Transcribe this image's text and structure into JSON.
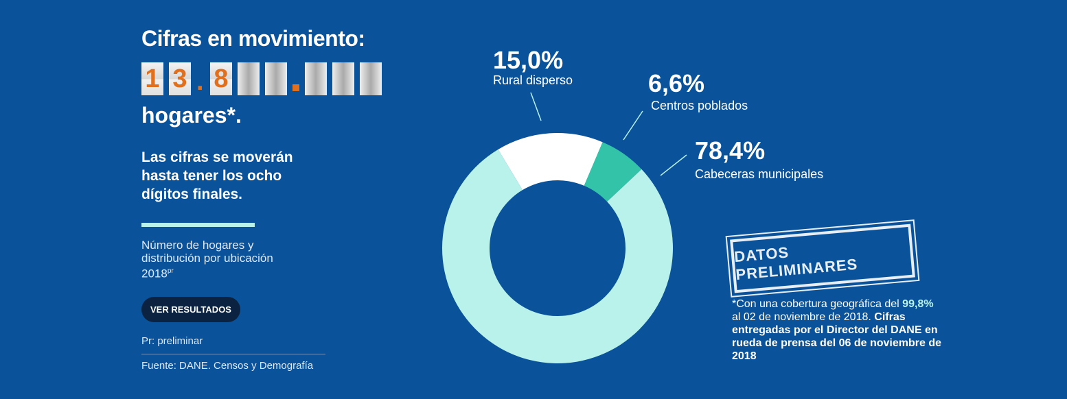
{
  "header": {
    "title": "Cifras en movimiento:",
    "counter": [
      "1",
      "3",
      ".",
      "8"
    ],
    "subtitle": "hogares*."
  },
  "lead": "Las cifras se moverán hasta tener los ocho dígitos finales.",
  "description": "Número de hogares y distribución por ubicación 2018",
  "description_sup": "pr",
  "button": "VER RESULTADOS",
  "footnote": "Pr: preliminar",
  "source": "Fuente: DANE. Censos y Demografía",
  "stamp": "DATOS PRELIMINARES",
  "note": [
    "*Con una cobertura geográfica del",
    "99,8%",
    "al 02 de noviembre de 2018.",
    "Cifras entregadas por el Director del DANE en rueda de prensa del 06 de noviembre de 2018"
  ],
  "chart_data": {
    "type": "pie",
    "donut": true,
    "categories": [
      "Rural disperso",
      "Centros poblados",
      "Cabeceras municipales"
    ],
    "values": [
      15.0,
      6.6,
      78.4
    ],
    "value_labels": [
      "15,0%",
      "6,6%",
      "78,4%"
    ],
    "colors": [
      "#ffffff",
      "#33c3a8",
      "#b8f2ea"
    ]
  }
}
